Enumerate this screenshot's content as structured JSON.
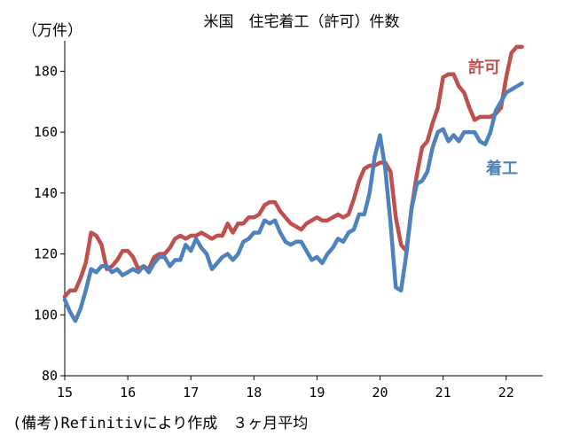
{
  "chart_data": {
    "type": "line",
    "title": "米国　住宅着工（許可）件数",
    "ylabel": "（万件）",
    "note": "(備考)Refinitivにより作成　３ヶ月平均",
    "ylim": [
      80,
      190
    ],
    "yticks": [
      80,
      100,
      120,
      140,
      160,
      180
    ],
    "xlim": [
      2015.0,
      2022.58
    ],
    "xticks": [
      {
        "value": 2015,
        "label": "15"
      },
      {
        "value": 2016,
        "label": "16"
      },
      {
        "value": 2017,
        "label": "17"
      },
      {
        "value": 2018,
        "label": "18"
      },
      {
        "value": 2019,
        "label": "19"
      },
      {
        "value": 2020,
        "label": "20"
      },
      {
        "value": 2021,
        "label": "21"
      },
      {
        "value": 2022,
        "label": "22"
      }
    ],
    "grid": false,
    "series": [
      {
        "name": "許可",
        "color": "#c0504d",
        "x": [
          2015.0,
          2015.083,
          2015.167,
          2015.25,
          2015.333,
          2015.417,
          2015.5,
          2015.583,
          2015.667,
          2015.75,
          2015.833,
          2015.917,
          2016.0,
          2016.083,
          2016.167,
          2016.25,
          2016.333,
          2016.417,
          2016.5,
          2016.583,
          2016.667,
          2016.75,
          2016.833,
          2016.917,
          2017.0,
          2017.083,
          2017.167,
          2017.25,
          2017.333,
          2017.417,
          2017.5,
          2017.583,
          2017.667,
          2017.75,
          2017.833,
          2017.917,
          2018.0,
          2018.083,
          2018.167,
          2018.25,
          2018.333,
          2018.417,
          2018.5,
          2018.583,
          2018.667,
          2018.75,
          2018.833,
          2018.917,
          2019.0,
          2019.083,
          2019.167,
          2019.25,
          2019.333,
          2019.417,
          2019.5,
          2019.583,
          2019.667,
          2019.75,
          2019.833,
          2019.917,
          2020.0,
          2020.083,
          2020.167,
          2020.25,
          2020.333,
          2020.417,
          2020.5,
          2020.583,
          2020.667,
          2020.75,
          2020.833,
          2020.917,
          2021.0,
          2021.083,
          2021.167,
          2021.25,
          2021.333,
          2021.417,
          2021.5,
          2021.583,
          2021.667,
          2021.75,
          2021.833,
          2021.917,
          2022.0,
          2022.083,
          2022.167,
          2022.25
        ],
        "values": [
          106,
          108,
          108,
          112,
          117,
          127,
          126,
          123,
          115,
          116,
          118,
          121,
          121,
          119,
          115,
          116,
          115,
          119,
          120,
          120,
          122,
          125,
          126,
          125,
          126,
          126,
          127,
          126,
          125,
          126,
          126,
          130,
          127,
          130,
          130,
          132,
          132,
          133,
          136,
          137,
          137,
          134,
          132,
          130,
          129,
          128,
          130,
          131,
          132,
          131,
          131,
          132,
          133,
          132,
          133,
          138,
          144,
          148,
          149,
          149,
          150,
          150,
          147,
          132,
          123,
          121,
          135,
          146,
          155,
          157,
          163,
          168,
          178,
          179,
          179,
          175,
          173,
          168,
          164,
          165,
          165,
          165,
          166,
          168,
          178,
          186,
          188,
          188
        ]
      },
      {
        "name": "着工",
        "color": "#4f81bd",
        "x": [
          2015.0,
          2015.083,
          2015.167,
          2015.25,
          2015.333,
          2015.417,
          2015.5,
          2015.583,
          2015.667,
          2015.75,
          2015.833,
          2015.917,
          2016.0,
          2016.083,
          2016.167,
          2016.25,
          2016.333,
          2016.417,
          2016.5,
          2016.583,
          2016.667,
          2016.75,
          2016.833,
          2016.917,
          2017.0,
          2017.083,
          2017.167,
          2017.25,
          2017.333,
          2017.417,
          2017.5,
          2017.583,
          2017.667,
          2017.75,
          2017.833,
          2017.917,
          2018.0,
          2018.083,
          2018.167,
          2018.25,
          2018.333,
          2018.417,
          2018.5,
          2018.583,
          2018.667,
          2018.75,
          2018.833,
          2018.917,
          2019.0,
          2019.083,
          2019.167,
          2019.25,
          2019.333,
          2019.417,
          2019.5,
          2019.583,
          2019.667,
          2019.75,
          2019.833,
          2019.917,
          2020.0,
          2020.083,
          2020.167,
          2020.25,
          2020.333,
          2020.417,
          2020.5,
          2020.583,
          2020.667,
          2020.75,
          2020.833,
          2020.917,
          2021.0,
          2021.083,
          2021.167,
          2021.25,
          2021.333,
          2021.417,
          2021.5,
          2021.583,
          2021.667,
          2021.75,
          2021.833,
          2021.917,
          2022.0,
          2022.083,
          2022.167,
          2022.25
        ],
        "values": [
          105,
          101,
          98,
          102,
          108,
          115,
          114,
          116,
          116,
          114,
          115,
          113,
          114,
          115,
          114,
          116,
          114,
          117,
          119,
          119,
          116,
          118,
          118,
          123,
          121,
          125,
          122,
          120,
          115,
          117,
          119,
          120,
          118,
          120,
          124,
          125,
          127,
          127,
          131,
          130,
          131,
          127,
          124,
          123,
          124,
          124,
          121,
          118,
          119,
          117,
          120,
          122,
          125,
          124,
          127,
          128,
          133,
          133,
          140,
          152,
          159,
          148,
          130,
          109,
          108,
          120,
          135,
          143,
          144,
          147,
          155,
          160,
          161,
          157,
          159,
          157,
          160,
          160,
          160,
          157,
          156,
          160,
          167,
          170,
          173,
          174,
          175,
          176
        ]
      }
    ],
    "series_labels": [
      {
        "text": "許可",
        "color": "#c0504d"
      },
      {
        "text": "着工",
        "color": "#4f81bd"
      }
    ]
  }
}
